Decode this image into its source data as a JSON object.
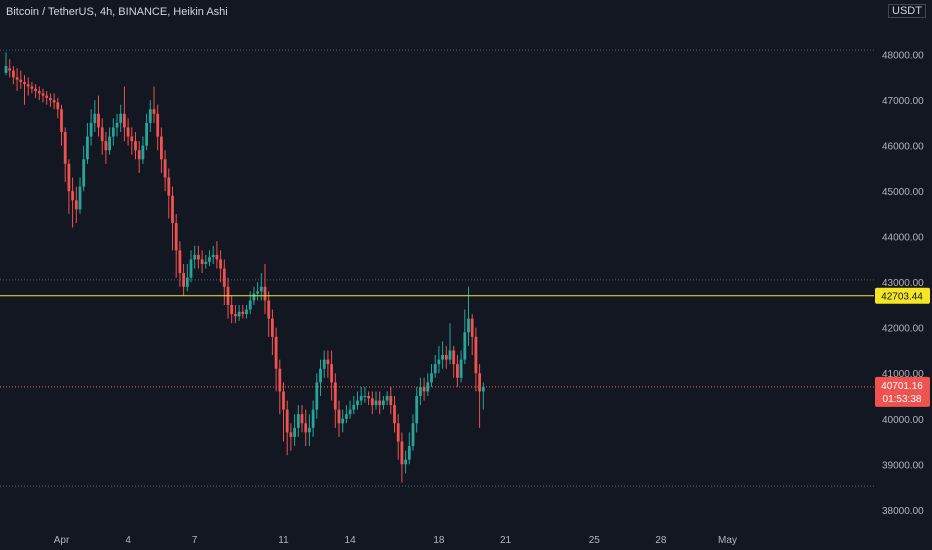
{
  "header": {
    "title": "Bitcoin / TetherUS, 4h, BINANCE, Heikin Ashi",
    "currency": "USDT"
  },
  "colors": {
    "background": "#131722",
    "up": "#26a69a",
    "down": "#ef5350",
    "hline": "#f5e625",
    "grid": "#2a2e39"
  },
  "chart_data": {
    "type": "candlestick",
    "style": "Heikin Ashi",
    "symbol": "Bitcoin / TetherUS",
    "interval": "4h",
    "exchange": "BINANCE",
    "ylim": [
      37600,
      49200
    ],
    "y_ticks": [
      "48000.00",
      "47000.00",
      "46000.00",
      "45000.00",
      "44000.00",
      "43000.00",
      "42000.00",
      "41000.00",
      "40000.00",
      "39000.00",
      "38000.00"
    ],
    "x_ticks": [
      {
        "label": "Apr",
        "bar": 15
      },
      {
        "label": "4",
        "bar": 33
      },
      {
        "label": "7",
        "bar": 51
      },
      {
        "label": "11",
        "bar": 75
      },
      {
        "label": "14",
        "bar": 93
      },
      {
        "label": "18",
        "bar": 117
      },
      {
        "label": "21",
        "bar": 135
      },
      {
        "label": "25",
        "bar": 159
      },
      {
        "label": "28",
        "bar": 177
      },
      {
        "label": "May",
        "bar": 195
      }
    ],
    "horizontal_line": {
      "value": 42703.44,
      "label": "42703.44"
    },
    "last_price": {
      "value": 40701.16,
      "label": "40701.16",
      "countdown": "01:53:38"
    },
    "dotted_levels": [
      48100,
      43050,
      38520
    ],
    "candles": [
      [
        47600,
        47750,
        47550,
        48050
      ],
      [
        47700,
        47650,
        47500,
        47900
      ],
      [
        47650,
        47500,
        47350,
        47750
      ],
      [
        47500,
        47450,
        47200,
        47700
      ],
      [
        47450,
        47400,
        47250,
        47650
      ],
      [
        47400,
        47350,
        46900,
        47550
      ],
      [
        47350,
        47300,
        47100,
        47500
      ],
      [
        47300,
        47250,
        47150,
        47400
      ],
      [
        47250,
        47200,
        47050,
        47350
      ],
      [
        47200,
        47150,
        47000,
        47300
      ],
      [
        47150,
        47100,
        46950,
        47250
      ],
      [
        47100,
        47050,
        46900,
        47200
      ],
      [
        47050,
        47000,
        46850,
        47150
      ],
      [
        47000,
        46950,
        46800,
        47150
      ],
      [
        46950,
        46800,
        46600,
        47050
      ],
      [
        46800,
        46300,
        46000,
        46900
      ],
      [
        46300,
        45600,
        45200,
        46400
      ],
      [
        45600,
        45000,
        44500,
        45700
      ],
      [
        45000,
        44800,
        44200,
        45300
      ],
      [
        44800,
        44600,
        44300,
        45100
      ],
      [
        44600,
        45100,
        44500,
        45300
      ],
      [
        45100,
        45700,
        45000,
        46000
      ],
      [
        45700,
        46200,
        45600,
        46500
      ],
      [
        46200,
        46500,
        46000,
        46800
      ],
      [
        46500,
        46700,
        46300,
        47000
      ],
      [
        46700,
        46400,
        46200,
        47100
      ],
      [
        46400,
        46100,
        45800,
        46600
      ],
      [
        46100,
        45900,
        45600,
        46300
      ],
      [
        45900,
        46200,
        45800,
        46400
      ],
      [
        46200,
        46400,
        46000,
        46600
      ],
      [
        46400,
        46500,
        46200,
        46700
      ],
      [
        46500,
        46700,
        46300,
        46900
      ],
      [
        46700,
        46400,
        46100,
        47300
      ],
      [
        46400,
        46200,
        46000,
        46600
      ],
      [
        46200,
        46100,
        45800,
        46400
      ],
      [
        46100,
        45900,
        45700,
        46300
      ],
      [
        45900,
        45700,
        45400,
        46100
      ],
      [
        45700,
        46000,
        45600,
        46200
      ],
      [
        46000,
        46500,
        45900,
        46700
      ],
      [
        46500,
        46800,
        46300,
        47000
      ],
      [
        46800,
        46700,
        46500,
        47300
      ],
      [
        46700,
        46200,
        45900,
        46900
      ],
      [
        46200,
        45700,
        45400,
        46400
      ],
      [
        45700,
        45300,
        45000,
        45900
      ],
      [
        45300,
        44900,
        44400,
        45500
      ],
      [
        44900,
        44300,
        43700,
        45100
      ],
      [
        44300,
        43700,
        43100,
        44500
      ],
      [
        43700,
        43200,
        42900,
        43900
      ],
      [
        43200,
        42900,
        42700,
        43400
      ],
      [
        42900,
        43100,
        42800,
        43400
      ],
      [
        43100,
        43500,
        43000,
        43700
      ],
      [
        43500,
        43600,
        43300,
        43800
      ],
      [
        43600,
        43500,
        43300,
        43800
      ],
      [
        43500,
        43400,
        43200,
        43700
      ],
      [
        43400,
        43450,
        43300,
        43600
      ],
      [
        43450,
        43550,
        43350,
        43700
      ],
      [
        43550,
        43600,
        43400,
        43800
      ],
      [
        43600,
        43500,
        43300,
        43900
      ],
      [
        43500,
        43300,
        43000,
        43700
      ],
      [
        43300,
        42900,
        42500,
        43500
      ],
      [
        42900,
        42500,
        42200,
        43100
      ],
      [
        42500,
        42300,
        42100,
        42700
      ],
      [
        42300,
        42250,
        42100,
        42500
      ],
      [
        42250,
        42350,
        42150,
        42500
      ],
      [
        42350,
        42300,
        42200,
        42500
      ],
      [
        42300,
        42400,
        42200,
        42500
      ],
      [
        42400,
        42600,
        42300,
        42800
      ],
      [
        42600,
        42750,
        42500,
        42900
      ],
      [
        42750,
        42800,
        42600,
        43000
      ],
      [
        42800,
        42900,
        42600,
        43200
      ],
      [
        42900,
        42600,
        42300,
        43400
      ],
      [
        42600,
        42200,
        41800,
        42800
      ],
      [
        42200,
        41800,
        41400,
        42400
      ],
      [
        41800,
        41100,
        40600,
        42000
      ],
      [
        41100,
        40600,
        40100,
        41300
      ],
      [
        40600,
        40200,
        39500,
        40800
      ],
      [
        40200,
        39700,
        39200,
        40400
      ],
      [
        39700,
        39600,
        39300,
        39900
      ],
      [
        39600,
        39800,
        39400,
        40100
      ],
      [
        39800,
        40100,
        39600,
        40300
      ],
      [
        40100,
        39900,
        39700,
        40300
      ],
      [
        39900,
        39700,
        39400,
        40200
      ],
      [
        39700,
        39800,
        39400,
        40100
      ],
      [
        39800,
        40200,
        39600,
        40400
      ],
      [
        40200,
        40800,
        40000,
        41000
      ],
      [
        40800,
        41100,
        40500,
        41300
      ],
      [
        41100,
        41300,
        40900,
        41500
      ],
      [
        41300,
        41200,
        40900,
        41500
      ],
      [
        41200,
        40800,
        40400,
        41500
      ],
      [
        40800,
        40200,
        39800,
        41000
      ],
      [
        40200,
        39900,
        39600,
        40400
      ],
      [
        39900,
        40000,
        39700,
        40200
      ],
      [
        40000,
        40100,
        39900,
        40300
      ],
      [
        40100,
        40200,
        40000,
        40400
      ],
      [
        40200,
        40300,
        40100,
        40500
      ],
      [
        40300,
        40400,
        40200,
        40600
      ],
      [
        40400,
        40500,
        40300,
        40700
      ],
      [
        40500,
        40500,
        40350,
        40700
      ],
      [
        40500,
        40450,
        40300,
        40600
      ],
      [
        40450,
        40300,
        40100,
        40600
      ],
      [
        40300,
        40400,
        40200,
        40600
      ],
      [
        40400,
        40300,
        40100,
        40600
      ],
      [
        40300,
        40400,
        40200,
        40500
      ],
      [
        40400,
        40500,
        40300,
        40600
      ],
      [
        40500,
        40300,
        40100,
        40700
      ],
      [
        40300,
        39900,
        39700,
        40500
      ],
      [
        39900,
        39500,
        39100,
        40100
      ],
      [
        39500,
        39000,
        38600,
        39700
      ],
      [
        39000,
        39100,
        38800,
        39300
      ],
      [
        39100,
        39400,
        39000,
        39700
      ],
      [
        39400,
        39900,
        39300,
        40100
      ],
      [
        39900,
        40500,
        39700,
        40700
      ],
      [
        40500,
        40700,
        40300,
        40900
      ],
      [
        40700,
        40600,
        40400,
        40900
      ],
      [
        40600,
        40800,
        40500,
        41000
      ],
      [
        40800,
        41000,
        40700,
        41200
      ],
      [
        41000,
        41200,
        40900,
        41400
      ],
      [
        41200,
        41300,
        41000,
        41600
      ],
      [
        41300,
        41400,
        41100,
        41700
      ],
      [
        41400,
        41300,
        41100,
        41600
      ],
      [
        41300,
        41500,
        41200,
        42100
      ],
      [
        41500,
        41200,
        40900,
        41600
      ],
      [
        41200,
        40900,
        40700,
        41400
      ],
      [
        40900,
        41300,
        40800,
        41500
      ],
      [
        41300,
        41900,
        41200,
        42400
      ],
      [
        41900,
        42200,
        41600,
        42900
      ],
      [
        42200,
        41800,
        41400,
        42300
      ],
      [
        41800,
        41000,
        40600,
        42000
      ],
      [
        41000,
        40600,
        39800,
        41200
      ],
      [
        40600,
        40701,
        40200,
        40800
      ]
    ]
  }
}
